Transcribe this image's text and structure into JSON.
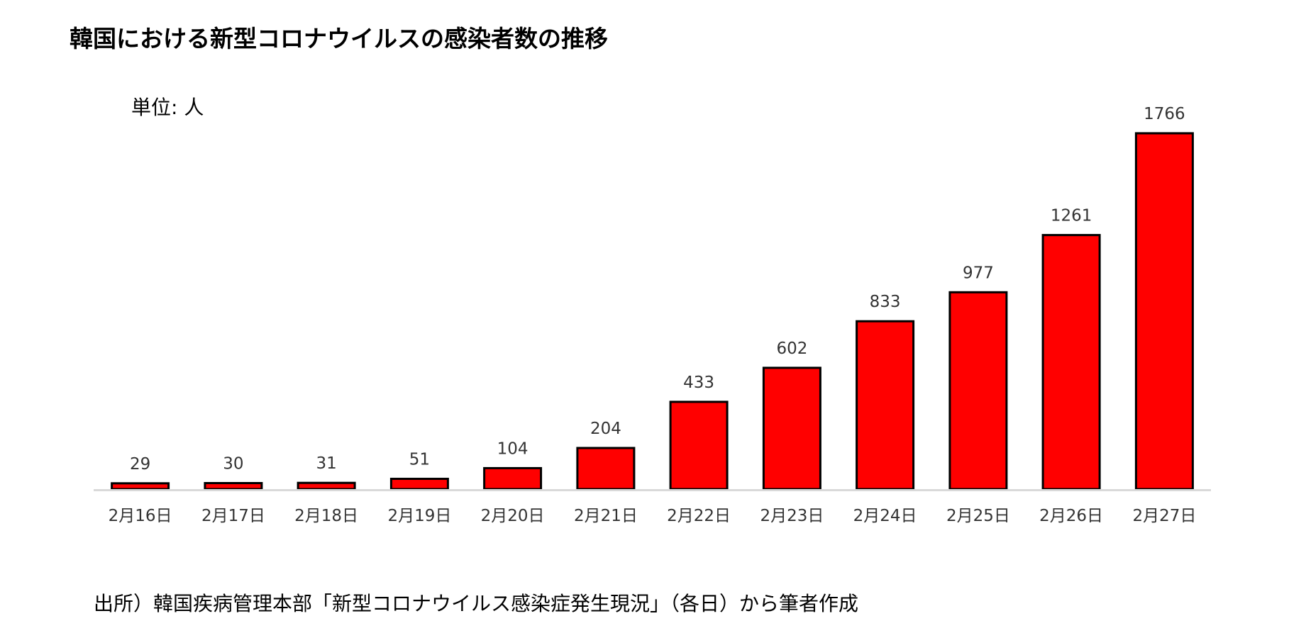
{
  "chart_data": {
    "type": "bar",
    "title": "韓国における新型コロナウイルスの感染者数の推移",
    "unit_label": "単位: 人",
    "categories": [
      "2月16日",
      "2月17日",
      "2月18日",
      "2月19日",
      "2月20日",
      "2月21日",
      "2月22日",
      "2月23日",
      "2月24日",
      "2月25日",
      "2月26日",
      "2月27日"
    ],
    "values": [
      29,
      30,
      31,
      51,
      104,
      204,
      433,
      602,
      833,
      977,
      1261,
      1766
    ],
    "data_labels": [
      "29",
      "30",
      "31",
      "51",
      "104",
      "204",
      "433",
      "602",
      "833",
      "977",
      "1261",
      "1766"
    ],
    "ylim": [
      0,
      1766
    ],
    "bar_color": "#ff0000",
    "bar_outline_color": "#000000",
    "axis_color": "#d9d9d9",
    "grid": false,
    "legend": "none"
  },
  "source_note": "出所）韓国疾病管理本部「新型コロナウイルス感染症発生現況」（各日）から筆者作成"
}
